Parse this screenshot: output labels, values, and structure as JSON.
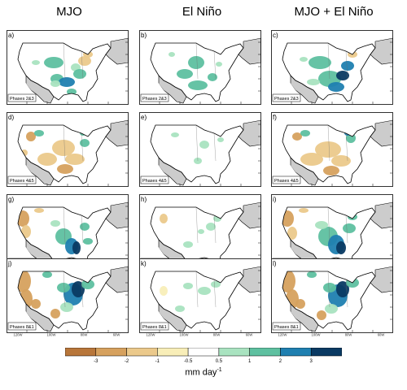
{
  "columns": [
    "MJO",
    "El Niño",
    "MJO + El Niño"
  ],
  "rows": [
    "Phases 2&3",
    "Phases 4&5",
    "Phases 6&7",
    "Phases 8&1"
  ],
  "panel_letters": [
    "a)",
    "b)",
    "c)",
    "d)",
    "e)",
    "f)",
    "g)",
    "h)",
    "i)",
    "j)",
    "k)",
    "l)"
  ],
  "lon_ticks": [
    "120W",
    "100W",
    "80W",
    "60W"
  ],
  "colorbar": {
    "unit_base": "mm day",
    "unit_exp": "-1",
    "tick_labels": [
      "-3",
      "-2",
      "-1",
      "-0.5",
      "0.5",
      "1",
      "2",
      "3"
    ],
    "colors": [
      "#b8763a",
      "#d6a15e",
      "#ebc98b",
      "#f8eeb8",
      "#ffffff",
      "#a9e3c0",
      "#5ec0a0",
      "#1f7fb0",
      "#0a3a63"
    ]
  },
  "map_colors": {
    "land": "#ffffff",
    "masked": "#cccccc",
    "outline": "#000000"
  }
}
